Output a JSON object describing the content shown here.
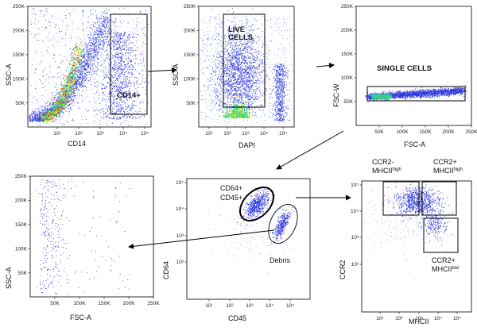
{
  "colors": {
    "dot": "#2b35d8",
    "dot_light": "#8fa0ff",
    "green": "#2fd640",
    "yellow": "#f2e81a",
    "red": "#e8281e",
    "cyan": "#28d6e8",
    "gate": "#000000"
  },
  "chart_data": [
    {
      "type": "scatter",
      "id": "p1",
      "xlabel": "CD14",
      "ylabel": "SSC-A",
      "xscale": "log",
      "xlim": [
        0.5,
        100000
      ],
      "ylim": [
        0,
        250000
      ],
      "xticks": [
        "10¹",
        "10²",
        "10³",
        "10⁴",
        "10⁵"
      ],
      "yticks": [
        "50K",
        "100K",
        "150K",
        "200K",
        "250K"
      ],
      "ytick_values": [
        50000,
        100000,
        150000,
        200000,
        250000
      ],
      "gates": [
        {
          "label": "CD14+",
          "type": "rect",
          "x": [
            2000,
            100000
          ],
          "y": [
            35000,
            245000
          ]
        }
      ]
    },
    {
      "type": "scatter",
      "id": "p2",
      "xlabel": "DAPI",
      "ylabel": "SSC-A",
      "xscale": "log",
      "xlim": [
        3,
        100000
      ],
      "ylim": [
        0,
        250000
      ],
      "xticks": [
        "10¹",
        "10²",
        "10³",
        "10⁴",
        "10⁵"
      ],
      "yticks": [
        "50K",
        "100K",
        "150K",
        "200K",
        "250K"
      ],
      "ytick_values": [
        50000,
        100000,
        150000,
        200000,
        250000
      ],
      "gates": [
        {
          "label_lines": [
            "LIVE",
            "CELLS"
          ],
          "type": "rect",
          "x": [
            60,
            4000
          ],
          "y": [
            35000,
            245000
          ]
        }
      ]
    },
    {
      "type": "scatter",
      "id": "p3",
      "xlabel": "FSC-A",
      "ylabel": "FSC-W",
      "xlim": [
        0,
        250000
      ],
      "ylim": [
        0,
        250000
      ],
      "xticks": [
        "50K",
        "100K",
        "150K",
        "200K",
        "250K"
      ],
      "xtick_values": [
        50000,
        100000,
        150000,
        200000,
        250000
      ],
      "yticks": [
        "50K",
        "100K",
        "150K",
        "200K",
        "250K"
      ],
      "ytick_values": [
        50000,
        100000,
        150000,
        200000,
        250000
      ],
      "gates": [
        {
          "label": "SINGLE CELLS",
          "type": "rect",
          "x": [
            20000,
            235000
          ],
          "y": [
            50000,
            85000
          ]
        }
      ]
    },
    {
      "type": "scatter",
      "id": "p4",
      "xlabel": "FSC-A",
      "ylabel": "SSC-A",
      "xlim": [
        0,
        250000
      ],
      "ylim": [
        0,
        250000
      ],
      "xticks": [
        "50K",
        "100K",
        "150K",
        "200K",
        "250K"
      ],
      "xtick_values": [
        50000,
        100000,
        150000,
        200000,
        250000
      ],
      "yticks": [
        "50K",
        "100K",
        "150K",
        "200K",
        "250K"
      ],
      "ytick_values": [
        50000,
        100000,
        150000,
        200000,
        250000
      ],
      "gates": []
    },
    {
      "type": "scatter",
      "id": "p5",
      "xlabel": "CD45",
      "ylabel": "CD64",
      "xscale": "log",
      "yscale": "log",
      "xlim": [
        1,
        100000
      ],
      "ylim": [
        1,
        100000
      ],
      "xticks": [
        "10¹",
        "10²",
        "10³",
        "10⁴",
        "10⁵"
      ],
      "yticks": [
        "10²",
        "10³",
        "10⁴",
        "10⁵"
      ],
      "gates": [
        {
          "label_lines": [
            "CD64+",
            "CD45+"
          ],
          "type": "ellipse"
        },
        {
          "label": "Debris",
          "type": "ellipse"
        }
      ]
    },
    {
      "type": "scatter",
      "id": "p6",
      "xlabel": "MHCII",
      "ylabel": "CCR2",
      "xscale": "log",
      "yscale": "log",
      "xlim": [
        1,
        100000
      ],
      "ylim": [
        1,
        100000
      ],
      "xticks": [
        "10¹",
        "10²",
        "10³",
        "10⁴",
        "10⁵"
      ],
      "yticks": [
        "10²",
        "10³",
        "10⁴",
        "10⁵"
      ],
      "gates": [
        {
          "label_main": "CCR2-",
          "label_sub": "MHCII",
          "label_sup": "high",
          "type": "rect"
        },
        {
          "label_main": "CCR2+",
          "label_sub": "MHCII",
          "label_sup": "high",
          "type": "rect"
        },
        {
          "label_main": "CCR2+",
          "label_sub": "MHCII",
          "label_sup": "low",
          "type": "rect"
        }
      ]
    }
  ]
}
